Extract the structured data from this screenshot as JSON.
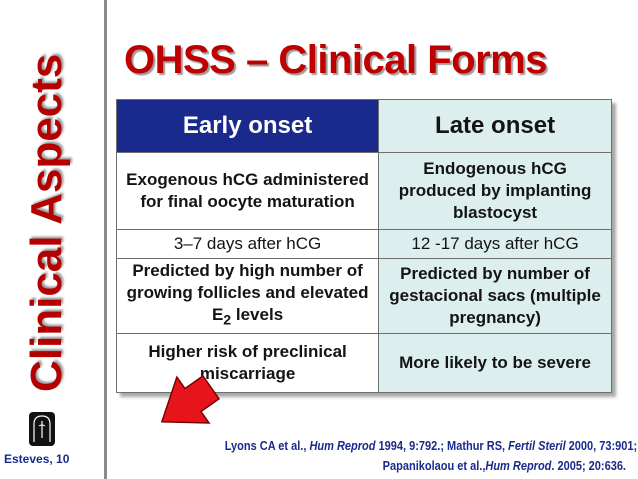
{
  "sidebar": {
    "title": "Clinical Aspects",
    "footer": "Esteves, 10",
    "logo_icon": "keyhole-logo-icon"
  },
  "slide": {
    "title": "OHSS – Clinical Forms"
  },
  "table": {
    "headers": {
      "early": "Early onset",
      "late": "Late onset"
    },
    "rows": [
      {
        "early": "Exogenous hCG administered for final oocyte maturation",
        "late": "Endogenous hCG produced by implanting blastocyst"
      },
      {
        "early": "3–7 days after hCG",
        "late": "12 -17 days after hCG"
      },
      {
        "early_prefix": "Predicted by high number of growing follicles and elevated E",
        "early_sub": "2",
        "early_suffix": " levels",
        "late": "Predicted by number of gestacional sacs (multiple pregnancy)"
      },
      {
        "early": "Higher risk of preclinical miscarriage",
        "late": "More likely to be severe"
      }
    ]
  },
  "footnote": {
    "l1_a": "Lyons CA et al., ",
    "l1_b": "Hum Reprod",
    "l1_c": " 1994, 9:792.; Mathur RS, ",
    "l1_d": "Fertil Steril",
    "l1_e": " 2000, 73:901;",
    "l2_a": "Papanikolaou et al.,",
    "l2_b": "Hum Reprod",
    "l2_c": ". 2005; 20:636."
  },
  "colors": {
    "title_red": "#c00000",
    "header_blue": "#1a2a8c",
    "late_cell_bg": "#dcefee",
    "arrow_red": "#e8141c"
  },
  "annotations": {
    "arrow_icon": "red-pointer-arrow-icon"
  }
}
